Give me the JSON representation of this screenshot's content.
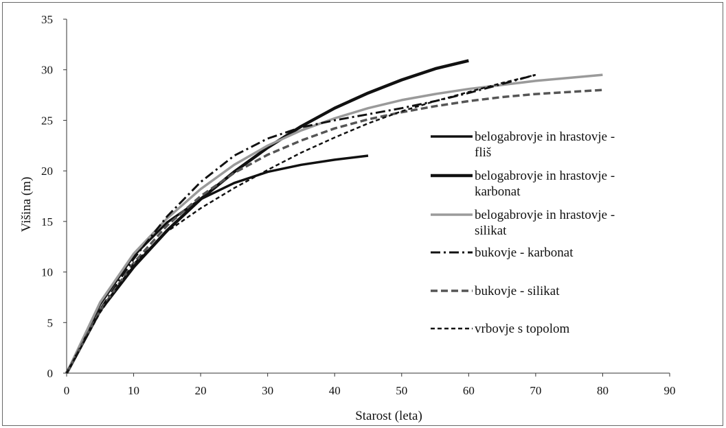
{
  "chart_data": {
    "type": "line",
    "title": "",
    "xlabel": "Starost (leta)",
    "ylabel": "Višina (m)",
    "xlim": [
      0,
      90
    ],
    "ylim": [
      0,
      35
    ],
    "xticks": [
      0,
      10,
      20,
      30,
      40,
      50,
      60,
      70,
      80,
      90
    ],
    "yticks": [
      0,
      5,
      10,
      15,
      20,
      25,
      30,
      35
    ],
    "grid": false,
    "legend_position": "right",
    "series": [
      {
        "name_lines": [
          "belogabrovje in hrastovje -",
          "fliš"
        ],
        "color": "#111111",
        "width": 3.5,
        "dash": "",
        "x": [
          0,
          5,
          10,
          15,
          20,
          25,
          30,
          35,
          40,
          45
        ],
        "y": [
          0,
          6.8,
          11.6,
          14.9,
          17.2,
          18.8,
          19.9,
          20.6,
          21.1,
          21.5
        ]
      },
      {
        "name_lines": [
          "belogabrovje in hrastovje -",
          "karbonat"
        ],
        "color": "#111111",
        "width": 4.5,
        "dash": "",
        "x": [
          0,
          5,
          10,
          15,
          20,
          25,
          30,
          35,
          40,
          45,
          50,
          55,
          60
        ],
        "y": [
          0,
          6.2,
          10.5,
          14.1,
          17.2,
          19.9,
          22.3,
          24.4,
          26.2,
          27.7,
          29.0,
          30.1,
          30.9
        ]
      },
      {
        "name_lines": [
          "belogabrovje in hrastovje -",
          "silikat"
        ],
        "color": "#9a9a9a",
        "width": 3.5,
        "dash": "",
        "x": [
          0,
          5,
          10,
          15,
          20,
          25,
          30,
          35,
          40,
          45,
          50,
          55,
          60,
          65,
          70,
          75,
          80
        ],
        "y": [
          0,
          7.0,
          11.8,
          15.3,
          18.2,
          20.6,
          22.5,
          24.0,
          25.2,
          26.2,
          27.0,
          27.6,
          28.1,
          28.5,
          28.9,
          29.2,
          29.5
        ]
      },
      {
        "name_lines": [
          "bukovje - karbonat"
        ],
        "color": "#111111",
        "width": 3,
        "dash": "14 5 3 5",
        "x": [
          0,
          5,
          10,
          15,
          20,
          25,
          30,
          35,
          40,
          45,
          50,
          55,
          60,
          65,
          70
        ],
        "y": [
          0,
          6.3,
          11.3,
          15.5,
          18.9,
          21.5,
          23.2,
          24.3,
          25.0,
          25.6,
          26.2,
          26.9,
          27.7,
          28.6,
          29.5
        ]
      },
      {
        "name_lines": [
          "bukovje - silikat"
        ],
        "color": "#555555",
        "width": 3.5,
        "dash": "10 5",
        "x": [
          0,
          5,
          10,
          15,
          20,
          25,
          30,
          35,
          40,
          45,
          50,
          55,
          60,
          65,
          70,
          75,
          80
        ],
        "y": [
          0,
          6.2,
          10.9,
          14.6,
          17.5,
          19.8,
          21.6,
          23.0,
          24.2,
          25.1,
          25.8,
          26.4,
          26.9,
          27.3,
          27.6,
          27.8,
          28.0
        ]
      },
      {
        "name_lines": [
          "vrbovje s topolom"
        ],
        "color": "#111111",
        "width": 2.5,
        "dash": "6 4",
        "x": [
          0,
          5,
          10,
          15,
          20,
          25,
          30,
          35,
          40,
          45,
          50,
          55,
          60,
          65,
          70
        ],
        "y": [
          0,
          6.0,
          10.8,
          14.0,
          16.3,
          18.3,
          20.1,
          21.8,
          23.3,
          24.7,
          25.9,
          26.9,
          27.8,
          28.7,
          29.5
        ]
      }
    ]
  }
}
